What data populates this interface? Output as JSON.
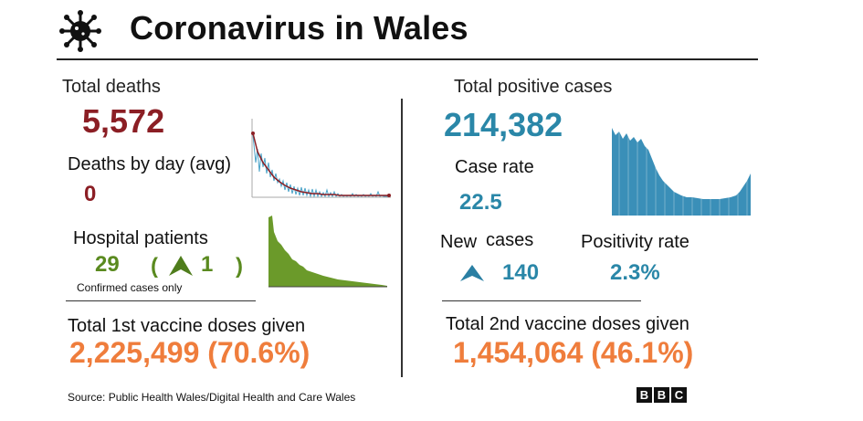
{
  "header": {
    "title": "Coronavirus in Wales"
  },
  "left": {
    "total_deaths_label": "Total deaths",
    "total_deaths_value": "5,572",
    "deaths_by_day_label": "Deaths by day (avg)",
    "deaths_by_day_value": "0",
    "hospital_label": "Hospital patients",
    "hospital_value": "29",
    "hospital_open": "(",
    "hospital_change": "1",
    "hospital_close": ")",
    "hospital_note": "Confirmed cases only",
    "vaccine1_label": "Total 1st vaccine doses  given",
    "vaccine1_value": "2,225,499 (70.6%)"
  },
  "right": {
    "total_cases_label": "Total positive cases",
    "total_cases_value": "214,382",
    "case_rate_label": "Case rate",
    "case_rate_value": "22.5",
    "new_cases_label_a": "New",
    "new_cases_label_b": "cases",
    "new_cases_value": "140",
    "positivity_label": "Positivity rate",
    "positivity_value": "2.3%",
    "vaccine2_label": "Total 2nd vaccine doses given",
    "vaccine2_value": "1,454,064  (46.1%)"
  },
  "footer": {
    "source": "Source: Public Health Wales/Digital Health and Care Wales",
    "logo_letters": [
      "B",
      "B",
      "C"
    ]
  },
  "colors": {
    "deaths": "#8b1e24",
    "hospital": "#5a8a1f",
    "cases": "#2a87a8",
    "vaccine": "#ef7d3c"
  },
  "icons": [
    "virus-icon",
    "up-arrow-icon"
  ]
}
